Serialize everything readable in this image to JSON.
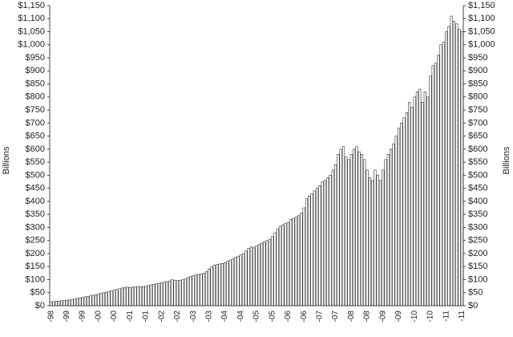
{
  "chart_data": {
    "type": "bar",
    "y_label": "Billions",
    "categories": [
      "-98",
      null,
      null,
      null,
      null,
      null,
      "-99",
      null,
      null,
      null,
      null,
      null,
      "-99",
      null,
      null,
      null,
      null,
      null,
      "-00",
      null,
      null,
      null,
      null,
      null,
      "-00",
      null,
      null,
      null,
      null,
      null,
      "-01",
      null,
      null,
      null,
      null,
      null,
      "-01",
      null,
      null,
      null,
      null,
      null,
      "-02",
      null,
      null,
      null,
      null,
      null,
      "-02",
      null,
      null,
      null,
      null,
      null,
      "-03",
      null,
      null,
      null,
      null,
      null,
      "-03",
      null,
      null,
      null,
      null,
      null,
      "-04",
      null,
      null,
      null,
      null,
      null,
      "-04",
      null,
      null,
      null,
      null,
      null,
      "-05",
      null,
      null,
      null,
      null,
      null,
      "-05",
      null,
      null,
      null,
      null,
      null,
      "-06",
      null,
      null,
      null,
      null,
      null,
      "-06",
      null,
      null,
      null,
      null,
      null,
      "-07",
      null,
      null,
      null,
      null,
      null,
      "-07",
      null,
      null,
      null,
      null,
      null,
      "-08",
      null,
      null,
      null,
      null,
      null,
      "-08",
      null,
      null,
      null,
      null,
      null,
      "-09",
      null,
      null,
      null,
      null,
      null,
      "-09",
      null,
      null,
      null,
      null,
      null,
      "-10",
      null,
      null,
      null,
      null,
      null,
      "-10",
      null,
      null,
      null,
      null,
      null,
      "-11",
      null,
      null,
      null,
      null,
      null,
      "-11"
    ],
    "values": [
      15,
      16,
      17,
      18,
      19,
      20,
      21,
      22,
      24,
      26,
      28,
      30,
      32,
      34,
      36,
      38,
      40,
      42,
      45,
      48,
      50,
      52,
      55,
      58,
      60,
      62,
      65,
      68,
      70,
      72,
      70,
      71,
      72,
      74,
      72,
      73,
      75,
      78,
      80,
      82,
      84,
      86,
      88,
      90,
      92,
      95,
      100,
      98,
      96,
      98,
      100,
      104,
      108,
      112,
      115,
      118,
      120,
      122,
      125,
      130,
      140,
      150,
      155,
      158,
      160,
      162,
      165,
      170,
      175,
      180,
      185,
      190,
      195,
      200,
      210,
      220,
      225,
      222,
      230,
      235,
      240,
      245,
      250,
      255,
      265,
      280,
      295,
      305,
      310,
      315,
      320,
      330,
      335,
      340,
      345,
      355,
      375,
      410,
      420,
      430,
      440,
      450,
      460,
      475,
      480,
      490,
      500,
      520,
      540,
      580,
      600,
      610,
      570,
      560,
      580,
      600,
      610,
      590,
      580,
      560,
      520,
      490,
      480,
      520,
      500,
      480,
      520,
      560,
      580,
      600,
      620,
      650,
      680,
      700,
      720,
      740,
      780,
      760,
      800,
      820,
      830,
      780,
      820,
      800,
      880,
      920,
      930,
      960,
      1000,
      1010,
      1050,
      1070,
      1110,
      1090,
      1080,
      1060,
      1050
    ],
    "color": "#ffffff",
    "edge_color": "#333333",
    "ylim": [
      0,
      1150
    ],
    "yticks": [
      {
        "value": 0,
        "label": "$0"
      },
      {
        "value": 50,
        "label": "$50"
      },
      {
        "value": 100,
        "label": "$100"
      },
      {
        "value": 150,
        "label": "$150"
      },
      {
        "value": 200,
        "label": "$200"
      },
      {
        "value": 250,
        "label": "$250"
      },
      {
        "value": 300,
        "label": "$300"
      },
      {
        "value": 350,
        "label": "$350"
      },
      {
        "value": 400,
        "label": "$400"
      },
      {
        "value": 450,
        "label": "$450"
      },
      {
        "value": 500,
        "label": "$500"
      },
      {
        "value": 550,
        "label": "$550"
      },
      {
        "value": 600,
        "label": "$600"
      },
      {
        "value": 650,
        "label": "$650"
      },
      {
        "value": 700,
        "label": "$700"
      },
      {
        "value": 750,
        "label": "$750"
      },
      {
        "value": 800,
        "label": "$800"
      },
      {
        "value": 850,
        "label": "$850"
      },
      {
        "value": 900,
        "label": "$900"
      },
      {
        "value": 950,
        "label": "$950"
      },
      {
        "value": 1000,
        "label": "$1,000"
      },
      {
        "value": 1050,
        "label": "$1,050"
      },
      {
        "value": 1100,
        "label": "$1,100"
      },
      {
        "value": 1150,
        "label": "$1,150"
      }
    ],
    "grid": false
  }
}
